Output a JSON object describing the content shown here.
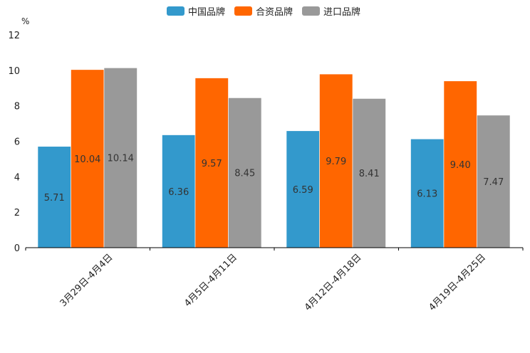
{
  "chart_data": {
    "type": "bar",
    "title": "",
    "unit": "%",
    "xlabel": "",
    "ylabel": "%",
    "ylim": [
      0,
      12
    ],
    "yticks": [
      0,
      2,
      4,
      6,
      8,
      10,
      12
    ],
    "grid": false,
    "legend_position": "top-center",
    "categories": [
      "3月29日-4月4日",
      "4月5日-4月11日",
      "4月12日-4月18日",
      "4月19日-4月25日"
    ],
    "series": [
      {
        "name": "中国品牌",
        "color": "#3399cc",
        "values": [
          5.71,
          6.36,
          6.59,
          6.13
        ],
        "labels": [
          "5.71",
          "6.36",
          "6.59",
          "6.13"
        ]
      },
      {
        "name": "合资品牌",
        "color": "#ff6600",
        "values": [
          10.04,
          9.57,
          9.79,
          9.4
        ],
        "labels": [
          "10.04",
          "9.57",
          "9.79",
          "9.40"
        ]
      },
      {
        "name": "进口品牌",
        "color": "#999999",
        "values": [
          10.14,
          8.45,
          8.41,
          7.47
        ],
        "labels": [
          "10.14",
          "8.45",
          "8.41",
          "7.47"
        ]
      }
    ]
  }
}
